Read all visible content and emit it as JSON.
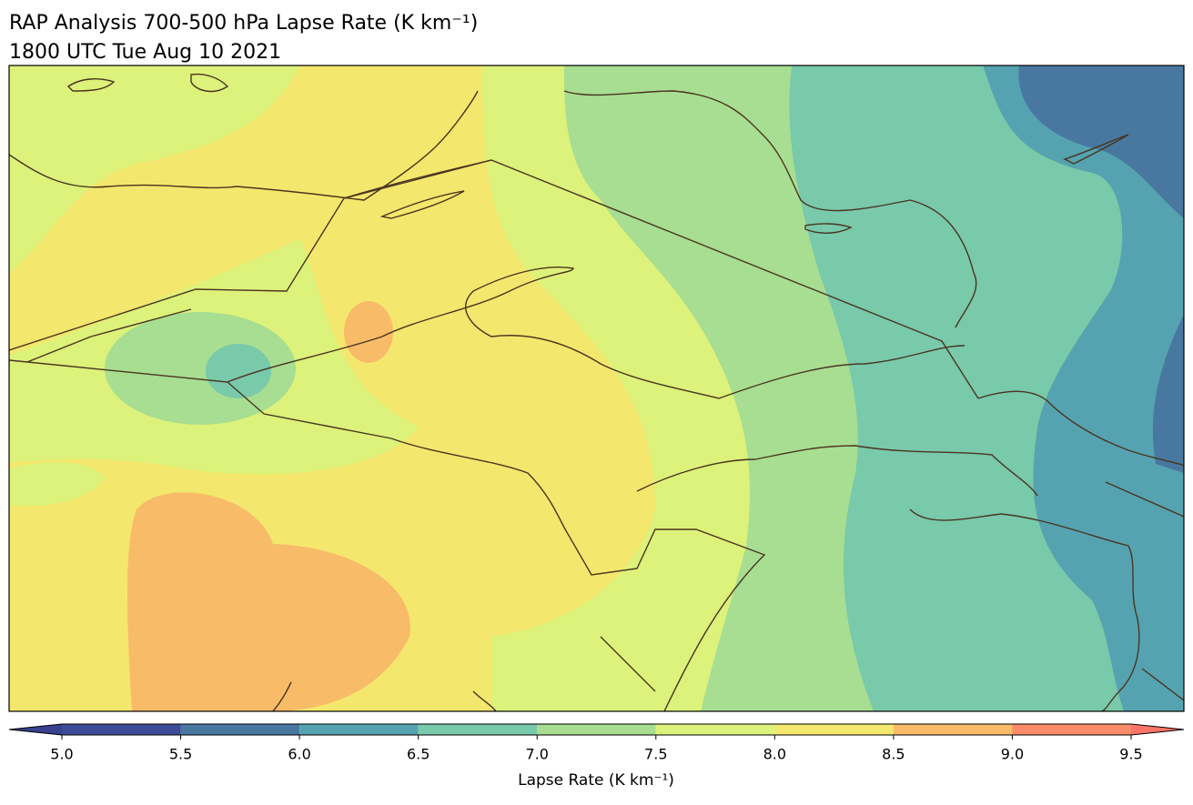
{
  "title": "RAP Analysis 700-500 hPa Lapse Rate (K km⁻¹)",
  "subtitle": "1800 UTC Tue Aug 10 2021",
  "colorbar": {
    "label": "Lapse Rate (K km⁻¹)",
    "ticks": [
      {
        "value": 5.0,
        "label": "5.0"
      },
      {
        "value": 5.5,
        "label": "5.5"
      },
      {
        "value": 6.0,
        "label": "6.0"
      },
      {
        "value": 6.5,
        "label": "6.5"
      },
      {
        "value": 7.0,
        "label": "7.0"
      },
      {
        "value": 7.5,
        "label": "7.5"
      },
      {
        "value": 8.0,
        "label": "8.0"
      },
      {
        "value": 8.5,
        "label": "8.5"
      },
      {
        "value": 9.0,
        "label": "9.0"
      },
      {
        "value": 9.5,
        "label": "9.5"
      }
    ],
    "colors": [
      "#39408f",
      "#3b4b98",
      "#4878a0",
      "#55a3b0",
      "#79c9ab",
      "#a8de91",
      "#dcf27a",
      "#f4e76d",
      "#f8bb68",
      "#fb8c6a",
      "#fd7468"
    ]
  }
}
